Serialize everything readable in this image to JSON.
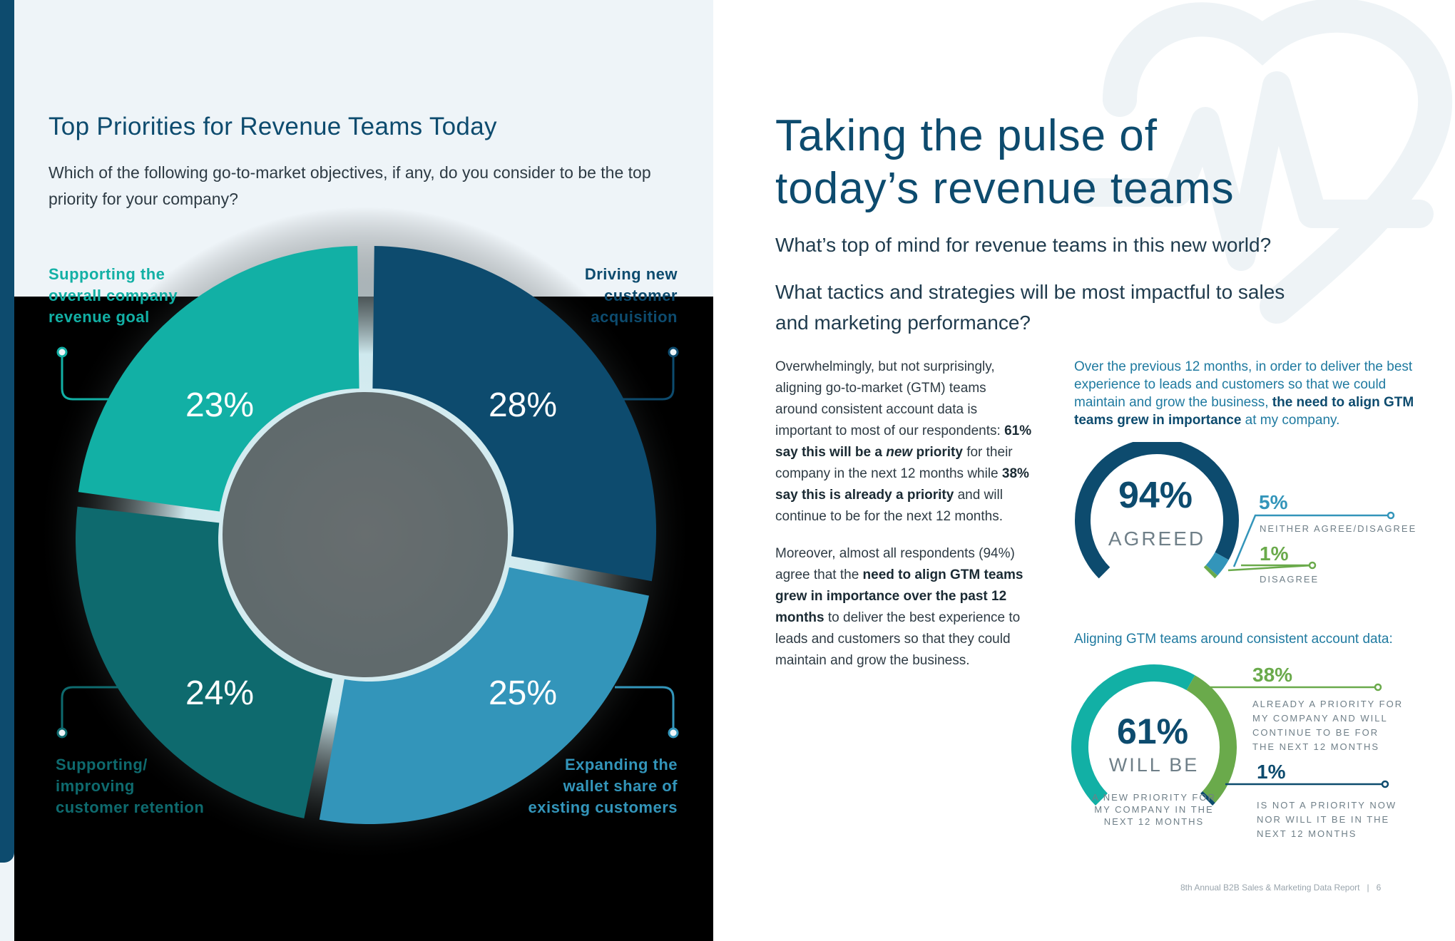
{
  "left": {
    "chart_title": "Top Priorities for Revenue Teams Today",
    "chart_question": "Which of the following go-to-market objectives, if any, do you consider to be the top priority for your company?"
  },
  "chart_data": {
    "type": "pie",
    "title": "Top Priorities for Revenue Teams Today",
    "categories": [
      "Driving new customer acquisition",
      "Expanding the wallet share of existing customers",
      "Supporting/ improving customer retention",
      "Supporting the overall company revenue goal"
    ],
    "values": [
      28,
      25,
      24,
      23
    ],
    "value_labels": [
      "28%",
      "25%",
      "24%",
      "23%"
    ],
    "label_lines": [
      [
        "Driving new",
        "customer",
        "acquisition"
      ],
      [
        "Expanding the",
        "wallet share of",
        "existing customers"
      ],
      [
        "Supporting/",
        "improving",
        "customer retention"
      ],
      [
        "Supporting the",
        "overall company",
        "revenue goal"
      ]
    ],
    "colors": [
      "#0d4b6e",
      "#3395ba",
      "#0e6a6e",
      "#12b0a5"
    ]
  },
  "right": {
    "title_line1": "Taking the pulse of",
    "title_line2": "today’s revenue teams",
    "question1": "What’s top of mind for revenue teams in this new world?",
    "question2_line1": "What tactics and strategies will be most impactful to sales",
    "question2_line2": "and marketing performance?",
    "body_p1_a": "Overwhelmingly, but not surprisingly, aligning go-to-market (GTM) teams around consistent account data is important to most of our respondents: ",
    "body_p1_b1": "61% say this will be a ",
    "body_p1_b_em": "new",
    "body_p1_b2": " priority",
    "body_p1_c": " for their company in the next 12 months while ",
    "body_p1_d": "38% say this is already a priority",
    "body_p1_e": " and will continue to be for the next 12 months.",
    "body_p2_a": "Moreover, almost all respondents (94%) agree that the ",
    "body_p2_b": "need to align GTM teams grew in importance over the past 12 months",
    "body_p2_c": " to deliver the best experience to leads and customers so that they could maintain and grow the business.",
    "callout1_a": "Over the previous 12 months, in order to deliver the best experience to leads and customers so that we could maintain and grow the business, ",
    "callout1_b": "the need to align GTM teams grew in importance",
    "callout1_c": " at my company.",
    "gauge1": {
      "big": "94%",
      "sub": "AGREED",
      "agree_pct": 94,
      "neither_pct": 5,
      "disagree_pct": 1,
      "neither_value": "5%",
      "neither_label": "NEITHER AGREE/DISAGREE",
      "disagree_value": "1%",
      "disagree_label": "DISAGREE",
      "colors": {
        "agree": "#0d4b6e",
        "neither": "#3395ba",
        "disagree": "#6aaa4b"
      }
    },
    "callout2": "Aligning GTM teams around consistent account data:",
    "gauge2": {
      "big": "61%",
      "sub": "WILL BE",
      "new_pct": 61,
      "already_pct": 38,
      "not_pct": 1,
      "caption_lines": [
        "A NEW PRIORITY FOR",
        "MY COMPANY IN THE",
        "NEXT 12 MONTHS"
      ],
      "already_value": "38%",
      "already_lines": [
        "ALREADY A PRIORITY FOR",
        "MY COMPANY AND WILL",
        "CONTINUE TO BE FOR",
        "THE NEXT 12 MONTHS"
      ],
      "not_value": "1%",
      "not_lines": [
        "IS NOT A PRIORITY NOW",
        "NOR WILL IT BE IN THE",
        "NEXT 12 MONTHS"
      ],
      "colors": {
        "new": "#12b0a5",
        "already": "#6aaa4b",
        "not": "#0d4b6e"
      }
    },
    "footer": "8th Annual B2B Sales & Marketing Data Report   |   6"
  }
}
